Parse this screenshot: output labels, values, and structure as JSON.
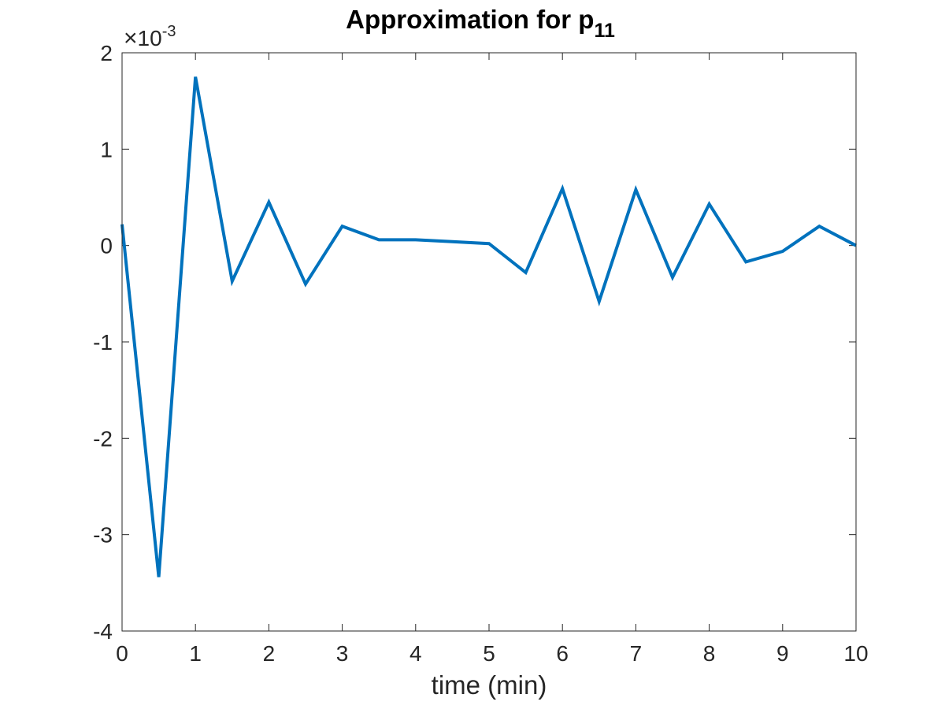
{
  "chart_data": {
    "type": "line",
    "title": "Approximation for p",
    "title_subscript": "11",
    "xlabel": "time (min)",
    "ylabel": "",
    "xlim": [
      0,
      10
    ],
    "ylim": [
      -0.004,
      0.002
    ],
    "y_exponent": {
      "times": "×",
      "base": "10",
      "power": "-3"
    },
    "xticks": [
      0,
      1,
      2,
      3,
      4,
      5,
      6,
      7,
      8,
      9,
      10
    ],
    "yticks": [
      2,
      1,
      0,
      -1,
      -2,
      -3,
      -4
    ],
    "xtick_labels": [
      "0",
      "1",
      "2",
      "3",
      "4",
      "5",
      "6",
      "7",
      "8",
      "9",
      "10"
    ],
    "ytick_labels": [
      "2",
      "1",
      "0",
      "-1",
      "-2",
      "-3",
      "-4"
    ],
    "grid": false,
    "box": true,
    "series": [
      {
        "color": "#0072BD",
        "x": [
          0,
          0.5,
          1,
          1.5,
          2,
          2.5,
          3,
          3.5,
          4,
          4.5,
          5,
          5.5,
          6,
          6.5,
          7,
          7.5,
          8,
          8.5,
          9,
          9.5,
          10
        ],
        "y": [
          0.00022,
          -0.00344,
          0.00175,
          -0.00037,
          0.00045,
          -0.0004,
          0.0002,
          6e-05,
          6e-05,
          4e-05,
          2e-05,
          -0.00028,
          0.00059,
          -0.00058,
          0.00058,
          -0.00033,
          0.00043,
          -0.00017,
          -6e-05,
          0.0002,
          0.0
        ]
      }
    ]
  }
}
